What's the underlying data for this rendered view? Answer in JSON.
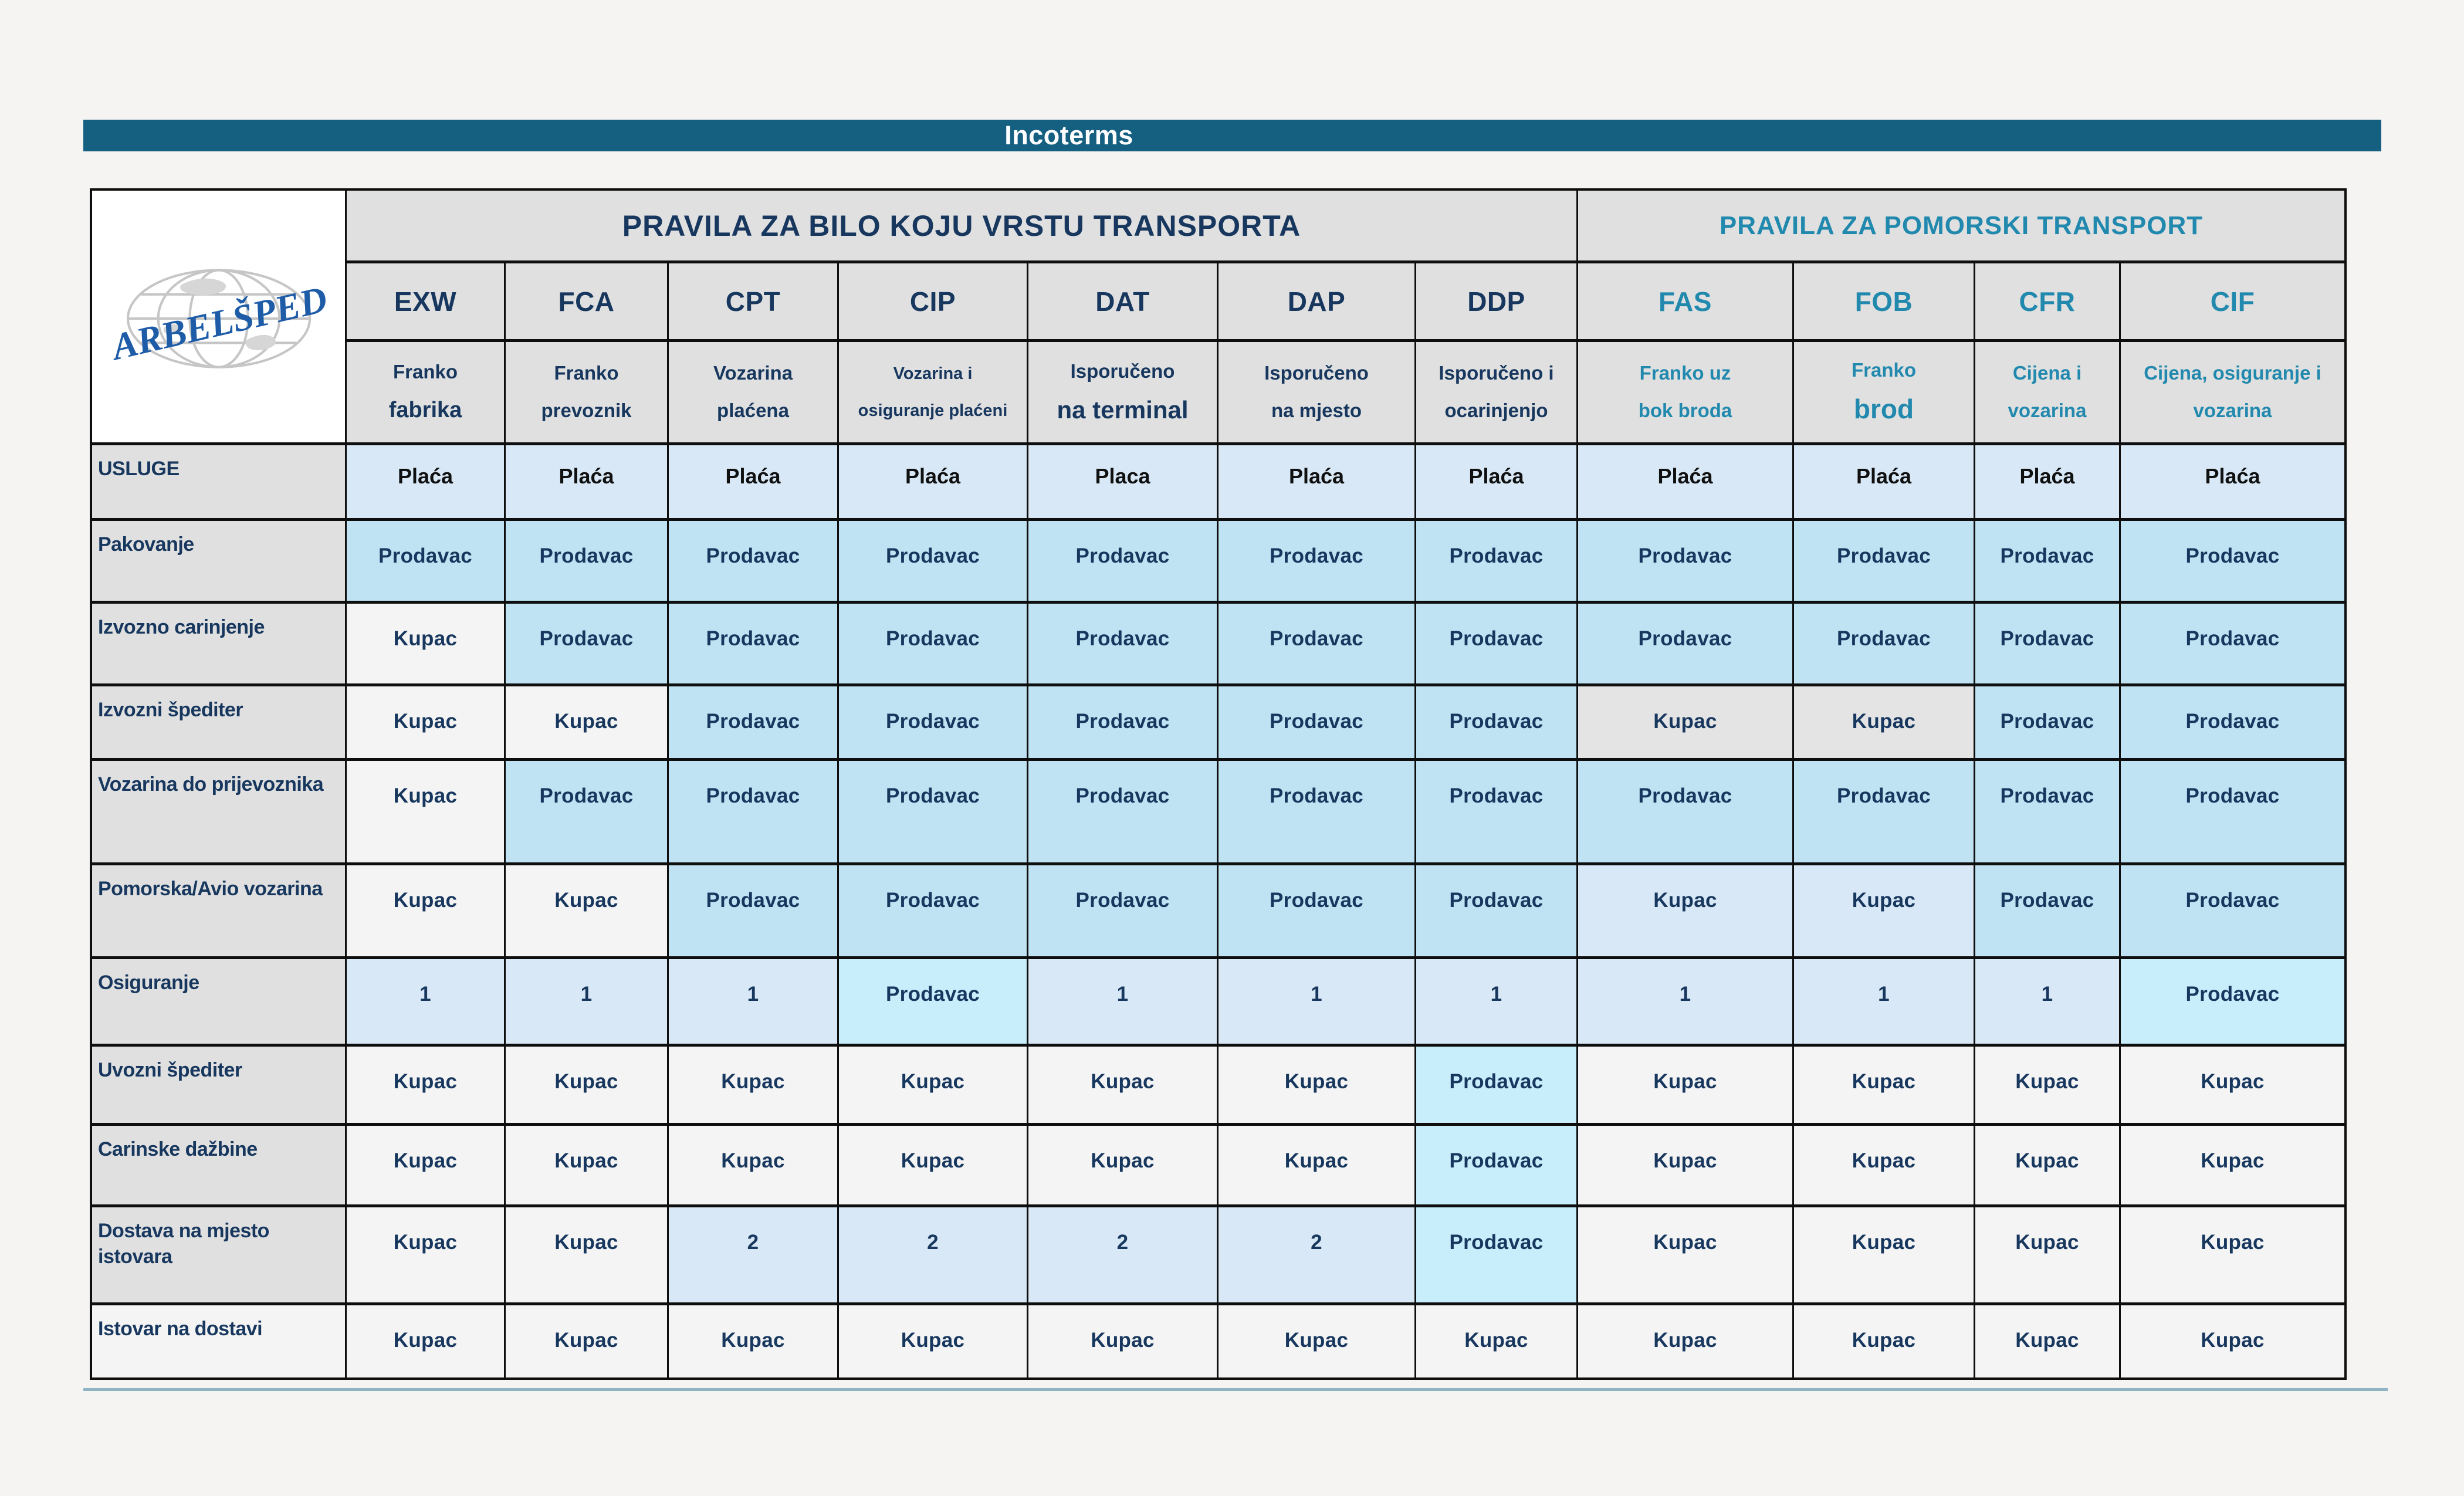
{
  "page": {
    "title": "Incoterms"
  },
  "logo": {
    "text": "ARBELŠPED"
  },
  "colors": {
    "title_bar": "#155F81",
    "navy": "#17375E",
    "teal": "#2289AE",
    "cell_blue": "#BFE3F3",
    "cell_light_blue": "#D8E8F6",
    "cell_cyan": "#C8EDFB",
    "cell_white": "#F4F4F4",
    "cell_gray": "#E4E4E4",
    "header_gray": "#E0E0E0",
    "divider": "#8FB4C4"
  },
  "table": {
    "group_headers": [
      {
        "id": "any-transport",
        "label": "PRAVILA ZA BILO KOJU VRSTU TRANSPORTA",
        "color": "navy",
        "span": 7
      },
      {
        "id": "maritime-transport",
        "label": "PRAVILA ZA POMORSKI TRANSPORT",
        "color": "teal",
        "span": 4
      }
    ],
    "columns": [
      {
        "code": "EXW",
        "color": "navy",
        "desc": [
          "Franko",
          "fabrika"
        ]
      },
      {
        "code": "FCA",
        "color": "navy",
        "desc": [
          "Franko",
          "prevoznik"
        ]
      },
      {
        "code": "CPT",
        "color": "navy",
        "desc": [
          "Vozarina",
          "plaćena"
        ]
      },
      {
        "code": "CIP",
        "color": "navy",
        "desc": [
          "Vozarina i",
          "osiguranje plaćeni"
        ]
      },
      {
        "code": "DAT",
        "color": "navy",
        "desc": [
          "Isporučeno",
          "na terminal"
        ]
      },
      {
        "code": "DAP",
        "color": "navy",
        "desc": [
          "Isporučeno",
          "na mjesto"
        ]
      },
      {
        "code": "DDP",
        "color": "navy",
        "desc": [
          "Isporučeno i",
          "ocarinjenjo"
        ]
      },
      {
        "code": "FAS",
        "color": "teal",
        "desc": [
          "Franko uz",
          "bok broda"
        ]
      },
      {
        "code": "FOB",
        "color": "teal",
        "desc": [
          "Franko",
          "brod"
        ]
      },
      {
        "code": "CFR",
        "color": "teal",
        "desc": [
          "Cijena i",
          "vozarina"
        ]
      },
      {
        "code": "CIF",
        "color": "teal",
        "desc": [
          "Cijena, osiguranje i",
          "vozarina"
        ]
      }
    ],
    "services_row": {
      "label": "USLUGE",
      "values": [
        "Plaća",
        "Plaća",
        "Plaća",
        "Plaća",
        "Placa",
        "Plaća",
        "Plaća",
        "Plaća",
        "Plaća",
        "Plaća",
        "Plaća"
      ]
    },
    "rows": [
      {
        "label": "Pakovanje",
        "label_bg": "gray",
        "cells": [
          [
            "Prodavac",
            "blue"
          ],
          [
            "Prodavac",
            "blue"
          ],
          [
            "Prodavac",
            "blue"
          ],
          [
            "Prodavac",
            "blue"
          ],
          [
            "Prodavac",
            "blue"
          ],
          [
            "Prodavac",
            "blue"
          ],
          [
            "Prodavac",
            "blue"
          ],
          [
            "Prodavac",
            "blue"
          ],
          [
            "Prodavac",
            "blue"
          ],
          [
            "Prodavac",
            "blue"
          ],
          [
            "Prodavac",
            "blue"
          ]
        ]
      },
      {
        "label": "Izvozno carinjenje",
        "label_bg": "gray",
        "cells": [
          [
            "Kupac",
            "white"
          ],
          [
            "Prodavac",
            "blue"
          ],
          [
            "Prodavac",
            "blue"
          ],
          [
            "Prodavac",
            "blue"
          ],
          [
            "Prodavac",
            "blue"
          ],
          [
            "Prodavac",
            "blue"
          ],
          [
            "Prodavac",
            "blue"
          ],
          [
            "Prodavac",
            "blue"
          ],
          [
            "Prodavac",
            "blue"
          ],
          [
            "Prodavac",
            "blue"
          ],
          [
            "Prodavac",
            "blue"
          ]
        ]
      },
      {
        "label": "Izvozni  špediter",
        "label_bg": "gray",
        "cells": [
          [
            "Kupac",
            "white"
          ],
          [
            "Kupac",
            "white"
          ],
          [
            "Prodavac",
            "blue"
          ],
          [
            "Prodavac",
            "blue"
          ],
          [
            "Prodavac",
            "blue"
          ],
          [
            "Prodavac",
            "blue"
          ],
          [
            "Prodavac",
            "blue"
          ],
          [
            "Kupac",
            "gray"
          ],
          [
            "Kupac",
            "gray"
          ],
          [
            "Prodavac",
            "blue"
          ],
          [
            "Prodavac",
            "blue"
          ]
        ]
      },
      {
        "label": "Vozarina do prijevoznika",
        "label_bg": "gray",
        "cells": [
          [
            "Kupac",
            "white"
          ],
          [
            "Prodavac",
            "blue"
          ],
          [
            "Prodavac",
            "blue"
          ],
          [
            "Prodavac",
            "blue"
          ],
          [
            "Prodavac",
            "blue"
          ],
          [
            "Prodavac",
            "blue"
          ],
          [
            "Prodavac",
            "blue"
          ],
          [
            "Prodavac",
            "blue"
          ],
          [
            "Prodavac",
            "blue"
          ],
          [
            "Prodavac",
            "blue"
          ],
          [
            "Prodavac",
            "blue"
          ]
        ]
      },
      {
        "label": "Pomorska/Avio vozarina",
        "label_bg": "gray",
        "cells": [
          [
            "Kupac",
            "white"
          ],
          [
            "Kupac",
            "white"
          ],
          [
            "Prodavac",
            "blue"
          ],
          [
            "Prodavac",
            "blue"
          ],
          [
            "Prodavac",
            "blue"
          ],
          [
            "Prodavac",
            "blue"
          ],
          [
            "Prodavac",
            "blue"
          ],
          [
            "Kupac",
            "lblue"
          ],
          [
            "Kupac",
            "lblue"
          ],
          [
            "Prodavac",
            "blue"
          ],
          [
            "Prodavac",
            "blue"
          ]
        ]
      },
      {
        "label": "Osiguranje",
        "label_bg": "gray",
        "cells": [
          [
            "1",
            "lblue"
          ],
          [
            "1",
            "lblue"
          ],
          [
            "1",
            "lblue"
          ],
          [
            "Prodavac",
            "cyan"
          ],
          [
            "1",
            "lblue"
          ],
          [
            "1",
            "lblue"
          ],
          [
            "1",
            "lblue"
          ],
          [
            "1",
            "lblue"
          ],
          [
            "1",
            "lblue"
          ],
          [
            "1",
            "lblue"
          ],
          [
            "Prodavac",
            "cyan"
          ]
        ]
      },
      {
        "label": "Uvozni  špediter",
        "label_bg": "gray",
        "cells": [
          [
            "Kupac",
            "white"
          ],
          [
            "Kupac",
            "white"
          ],
          [
            "Kupac",
            "white"
          ],
          [
            "Kupac",
            "white"
          ],
          [
            "Kupac",
            "white"
          ],
          [
            "Kupac",
            "white"
          ],
          [
            "Prodavac",
            "cyan"
          ],
          [
            "Kupac",
            "white"
          ],
          [
            "Kupac",
            "white"
          ],
          [
            "Kupac",
            "white"
          ],
          [
            "Kupac",
            "white"
          ]
        ]
      },
      {
        "label": "Carinske dažbine",
        "label_bg": "gray",
        "cells": [
          [
            "Kupac",
            "white"
          ],
          [
            "Kupac",
            "white"
          ],
          [
            "Kupac",
            "white"
          ],
          [
            "Kupac",
            "white"
          ],
          [
            "Kupac",
            "white"
          ],
          [
            "Kupac",
            "white"
          ],
          [
            "Prodavac",
            "cyan"
          ],
          [
            "Kupac",
            "white"
          ],
          [
            "Kupac",
            "white"
          ],
          [
            "Kupac",
            "white"
          ],
          [
            "Kupac",
            "white"
          ]
        ]
      },
      {
        "label": "Dostava na mjesto\nistovara",
        "label_bg": "gray",
        "cells": [
          [
            "Kupac",
            "white"
          ],
          [
            "Kupac",
            "white"
          ],
          [
            "2",
            "lblue"
          ],
          [
            "2",
            "lblue"
          ],
          [
            "2",
            "lblue"
          ],
          [
            "2",
            "lblue"
          ],
          [
            "Prodavac",
            "cyan"
          ],
          [
            "Kupac",
            "white"
          ],
          [
            "Kupac",
            "white"
          ],
          [
            "Kupac",
            "white"
          ],
          [
            "Kupac",
            "white"
          ]
        ]
      },
      {
        "label": "Istovar na dostavi",
        "label_bg": "white",
        "cells": [
          [
            "Kupac",
            "white"
          ],
          [
            "Kupac",
            "white"
          ],
          [
            "Kupac",
            "white"
          ],
          [
            "Kupac",
            "white"
          ],
          [
            "Kupac",
            "white"
          ],
          [
            "Kupac",
            "white"
          ],
          [
            "Kupac",
            "white"
          ],
          [
            "Kupac",
            "white"
          ],
          [
            "Kupac",
            "white"
          ],
          [
            "Kupac",
            "white"
          ],
          [
            "Kupac",
            "white"
          ]
        ]
      }
    ]
  }
}
